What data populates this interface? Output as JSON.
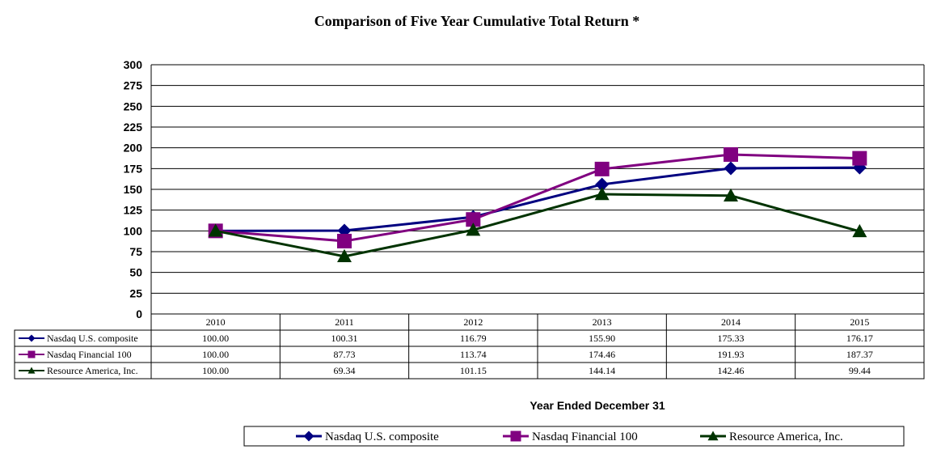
{
  "chart_data": {
    "type": "line",
    "title": "Comparison of Five Year Cumulative Total Return *",
    "xlabel": "Year Ended December 31",
    "ylabel": "",
    "ylim": [
      0,
      300
    ],
    "yticks": [
      0,
      25,
      50,
      75,
      100,
      125,
      150,
      175,
      200,
      225,
      250,
      275,
      300
    ],
    "categories": [
      "2010",
      "2011",
      "2012",
      "2013",
      "2014",
      "2015"
    ],
    "grid": true,
    "legend_position": "bottom",
    "series": [
      {
        "name": "Nasdaq U.S. composite",
        "marker": "diamond",
        "color": "#000080",
        "values": [
          100.0,
          100.31,
          116.79,
          155.9,
          175.33,
          176.17
        ],
        "labels": [
          "100.00",
          "100.31",
          "116.79",
          "155.90",
          "175.33",
          "176.17"
        ]
      },
      {
        "name": "Nasdaq Financial 100",
        "marker": "square",
        "color": "#800080",
        "values": [
          100.0,
          87.73,
          113.74,
          174.46,
          191.93,
          187.37
        ],
        "labels": [
          "100.00",
          "87.73",
          "113.74",
          "174.46",
          "191.93",
          "187.37"
        ]
      },
      {
        "name": "Resource America, Inc.",
        "marker": "triangle",
        "color": "#003300",
        "values": [
          100.0,
          69.34,
          101.15,
          144.14,
          142.46,
          99.44
        ],
        "labels": [
          "100.00",
          "69.34",
          "101.15",
          "144.14",
          "142.46",
          "99.44"
        ]
      }
    ]
  }
}
